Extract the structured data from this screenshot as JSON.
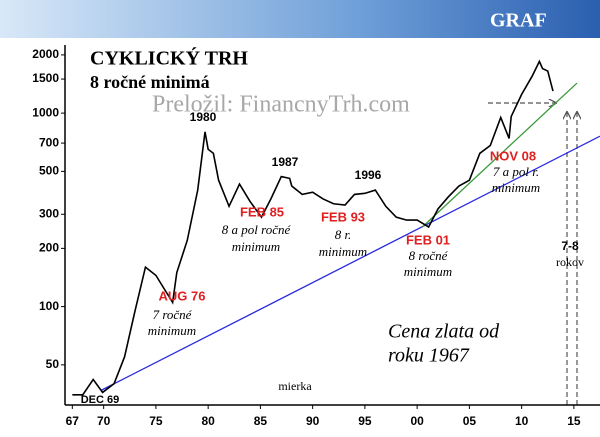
{
  "chart_data": {
    "type": "line",
    "header": "GRAF",
    "log_y": true,
    "x": [
      1967,
      1968,
      1969,
      1969.9,
      1971,
      1972,
      1973,
      1974,
      1975,
      1976.6,
      1977,
      1978,
      1979,
      1979.7,
      1980,
      1980.5,
      1981,
      1982,
      1983,
      1984,
      1985.1,
      1986,
      1987,
      1987.8,
      1988,
      1989,
      1990,
      1991,
      1992,
      1993.1,
      1994,
      1995,
      1996,
      1997,
      1998,
      1999,
      2000,
      2001.1,
      2002,
      2003,
      2004,
      2005,
      2006,
      2007,
      2008,
      2008.8,
      2009,
      2010,
      2011,
      2011.7,
      2012,
      2012.5,
      2013
    ],
    "series": [
      {
        "name": "Cena zlata",
        "color": "#000000",
        "values": [
          35,
          35,
          42,
          36,
          40,
          55,
          95,
          160,
          145,
          105,
          150,
          220,
          400,
          800,
          650,
          620,
          450,
          330,
          430,
          350,
          290,
          360,
          470,
          460,
          420,
          380,
          390,
          360,
          340,
          335,
          380,
          385,
          400,
          330,
          290,
          280,
          280,
          258,
          320,
          370,
          420,
          450,
          620,
          680,
          950,
          740,
          960,
          1250,
          1550,
          1850,
          1700,
          1650,
          1300
        ]
      }
    ],
    "trendlines": [
      {
        "x": [
          1969.8,
          2017.5
        ],
        "values": [
          37,
          760
        ],
        "color": "#2a2ae0"
      },
      {
        "x": [
          2000.5,
          2015.3
        ],
        "values": [
          258,
          1430
        ],
        "color": "#3a9a3a"
      }
    ],
    "xlim": [
      1966.3,
      2017.5
    ],
    "ylim": [
      31,
      2250
    ],
    "xticks": [
      {
        "value": 1967,
        "label": "67"
      },
      {
        "value": 1970,
        "label": "70"
      },
      {
        "value": 1975,
        "label": "75"
      },
      {
        "value": 1980,
        "label": "80"
      },
      {
        "value": 1985,
        "label": "85"
      },
      {
        "value": 1990,
        "label": "90"
      },
      {
        "value": 1995,
        "label": "95"
      },
      {
        "value": 2000,
        "label": "00"
      },
      {
        "value": 2005,
        "label": "05"
      },
      {
        "value": 2010,
        "label": "10"
      },
      {
        "value": 2015,
        "label": "15"
      }
    ],
    "yticks": [
      50,
      100,
      200,
      300,
      500,
      700,
      1000,
      1500,
      2000
    ],
    "annotations": [
      {
        "text": "CYKLICKÝ TRH",
        "color": "#000000"
      },
      {
        "text": "8 ročné minimá",
        "color": "#000000"
      },
      {
        "text": "Preložil: FinancnyTrh.com",
        "color": "#a8a8a8"
      },
      {
        "text": "1980",
        "color": "#000000"
      },
      {
        "text": "1987",
        "color": "#000000"
      },
      {
        "text": "1996",
        "color": "#000000"
      },
      {
        "text": "AUG 76",
        "color": "#e02020"
      },
      {
        "text": "7 ročné",
        "color": "#000000"
      },
      {
        "text": "minimum",
        "color": "#000000"
      },
      {
        "text": "FEB 85",
        "color": "#e02020"
      },
      {
        "text": "8 a pol ročné",
        "color": "#000000"
      },
      {
        "text": "minimum",
        "color": "#000000"
      },
      {
        "text": "FEB 93",
        "color": "#e02020"
      },
      {
        "text": "8 r.",
        "color": "#000000"
      },
      {
        "text": "minimum",
        "color": "#000000"
      },
      {
        "text": "FEB 01",
        "color": "#e02020"
      },
      {
        "text": "8 ročné",
        "color": "#000000"
      },
      {
        "text": "minimum",
        "color": "#000000"
      },
      {
        "text": "NOV 08",
        "color": "#e02020"
      },
      {
        "text": "7 a pol r.",
        "color": "#000000"
      },
      {
        "text": "minimum",
        "color": "#000000"
      },
      {
        "text": "DEC 69",
        "color": "#000000"
      },
      {
        "text": "7-8",
        "color": "#000000"
      },
      {
        "text": "rokov",
        "color": "#000000"
      },
      {
        "text": "mierka",
        "color": "#000000"
      },
      {
        "text": "Cena zlata od",
        "color": "#000000"
      },
      {
        "text": "roku 1967",
        "color": "#000000"
      }
    ]
  }
}
